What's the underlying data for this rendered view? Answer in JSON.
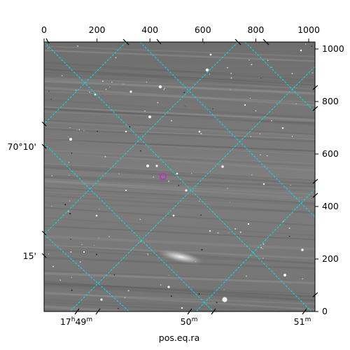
{
  "top_axis": {
    "ticks": [
      "0",
      "200",
      "400",
      "600",
      "800",
      "1000"
    ]
  },
  "right_axis": {
    "ticks": [
      "0",
      "200",
      "400",
      "600",
      "800",
      "1000"
    ]
  },
  "left_axis": {
    "labels": [
      "70°10'",
      "15'"
    ]
  },
  "bottom_axis": {
    "labels": [
      {
        "base": "17",
        "h": "h",
        "min": "49",
        "m": "m"
      },
      {
        "base": "50",
        "m": "m"
      },
      {
        "base": "51",
        "m": "m"
      }
    ],
    "title": "pos.eq.ra"
  },
  "colors": {
    "grid": "#00e5e5",
    "marker": "#d020d0",
    "sky_background": "#7a7a7a"
  }
}
